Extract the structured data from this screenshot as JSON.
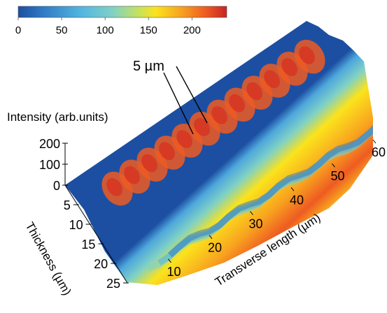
{
  "chart_data": {
    "type": "surface",
    "title": "",
    "colorbar": {
      "range": [
        0,
        240
      ],
      "ticks": [
        "0",
        "50",
        "100",
        "150",
        "200"
      ],
      "tick_values": [
        0,
        50,
        100,
        150,
        200
      ],
      "colors": [
        "#1c4fa2",
        "#2f7bc4",
        "#52b5e0",
        "#7fd1c6",
        "#c7e25c",
        "#fbe31c",
        "#f8a31f",
        "#ee5b22",
        "#c72326"
      ]
    },
    "z_axis": {
      "label": "Intensity (arb.units)",
      "ticks": [
        "0",
        "100",
        "200"
      ],
      "tick_values": [
        0,
        100,
        200
      ]
    },
    "y_axis": {
      "label": "Thickness (µm)",
      "ticks": [
        "5",
        "10",
        "15",
        "20",
        "25"
      ],
      "tick_values": [
        5,
        10,
        15,
        20,
        25
      ]
    },
    "x_axis": {
      "label": "Transverse length (µm)",
      "ticks": [
        "10",
        "20",
        "30",
        "40",
        "50",
        "60"
      ],
      "tick_values": [
        10,
        20,
        30,
        40,
        50,
        60
      ],
      "range": [
        0,
        60
      ]
    },
    "annotation": {
      "text": "5 µm"
    },
    "peak_intensity": 235,
    "fringe_period_um": 5
  }
}
